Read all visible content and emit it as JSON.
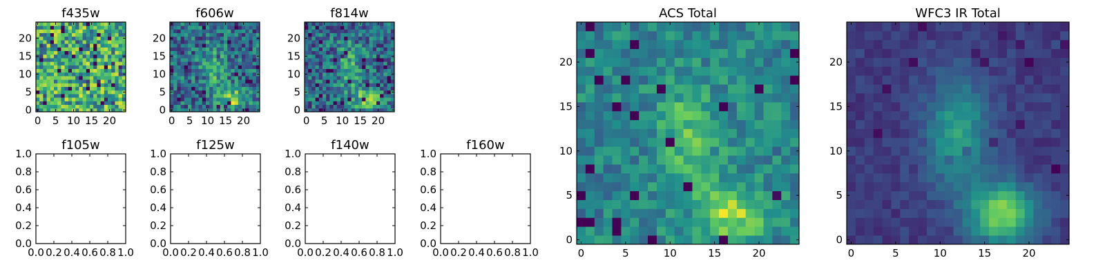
{
  "chart_data": [
    {
      "type": "heatmap",
      "title": "f435w",
      "xticks": [
        "0",
        "5",
        "10",
        "15",
        "20"
      ],
      "yticks": [
        "0",
        "5",
        "10",
        "15",
        "20"
      ],
      "xlim": [
        -0.5,
        24.5
      ],
      "ylim": [
        -0.5,
        24.5
      ],
      "pattern": "noise",
      "grid": false
    },
    {
      "type": "heatmap",
      "title": "f606w",
      "xticks": [
        "0",
        "5",
        "10",
        "15",
        "20"
      ],
      "yticks": [
        "0",
        "5",
        "10",
        "15",
        "20"
      ],
      "xlim": [
        -0.5,
        24.5
      ],
      "ylim": [
        -0.5,
        24.5
      ],
      "pattern": "noisy-source",
      "grid": false
    },
    {
      "type": "heatmap",
      "title": "f814w",
      "xticks": [
        "0",
        "5",
        "10",
        "15",
        "20"
      ],
      "yticks": [
        "0",
        "5",
        "10",
        "15",
        "20"
      ],
      "xlim": [
        -0.5,
        24.5
      ],
      "ylim": [
        -0.5,
        24.5
      ],
      "pattern": "noisy-source",
      "grid": false
    },
    {
      "type": "empty",
      "title": "f105w",
      "xticks": [
        "0.0",
        "0.2",
        "0.4",
        "0.6",
        "0.8",
        "1.0"
      ],
      "yticks": [
        "0.0",
        "0.2",
        "0.4",
        "0.6",
        "0.8",
        "1.0"
      ],
      "xlim": [
        0,
        1
      ],
      "ylim": [
        0,
        1
      ]
    },
    {
      "type": "empty",
      "title": "f125w",
      "xticks": [
        "0.0",
        "0.2",
        "0.4",
        "0.6",
        "0.8",
        "1.0"
      ],
      "yticks": [
        "0.0",
        "0.2",
        "0.4",
        "0.6",
        "0.8",
        "1.0"
      ],
      "xlim": [
        0,
        1
      ],
      "ylim": [
        0,
        1
      ]
    },
    {
      "type": "empty",
      "title": "f140w",
      "xticks": [
        "0.0",
        "0.2",
        "0.4",
        "0.6",
        "0.8",
        "1.0"
      ],
      "yticks": [
        "0.0",
        "0.2",
        "0.4",
        "0.6",
        "0.8",
        "1.0"
      ],
      "xlim": [
        0,
        1
      ],
      "ylim": [
        0,
        1
      ]
    },
    {
      "type": "empty",
      "title": "f160w",
      "xticks": [
        "0.0",
        "0.2",
        "0.4",
        "0.6",
        "0.8",
        "1.0"
      ],
      "yticks": [
        "0.0",
        "0.2",
        "0.4",
        "0.6",
        "0.8",
        "1.0"
      ],
      "xlim": [
        0,
        1
      ],
      "ylim": [
        0,
        1
      ]
    },
    {
      "type": "heatmap",
      "title": "ACS Total",
      "xticks": [
        "0",
        "5",
        "10",
        "15",
        "20"
      ],
      "yticks": [
        "0",
        "5",
        "10",
        "15",
        "20"
      ],
      "xlim": [
        -0.5,
        24.5
      ],
      "ylim": [
        -0.5,
        24.5
      ],
      "pattern": "source",
      "grid": false
    },
    {
      "type": "heatmap",
      "title": "WFC3 IR Total",
      "xticks": [
        "0",
        "5",
        "10",
        "15",
        "20"
      ],
      "yticks": [
        "0",
        "5",
        "10",
        "15",
        "20"
      ],
      "xlim": [
        -0.5,
        24.5
      ],
      "ylim": [
        -0.5,
        24.5
      ],
      "pattern": "smooth-source",
      "grid": false
    }
  ],
  "colormap": [
    "#440154",
    "#3b528b",
    "#21918c",
    "#5ec962",
    "#fde725"
  ]
}
